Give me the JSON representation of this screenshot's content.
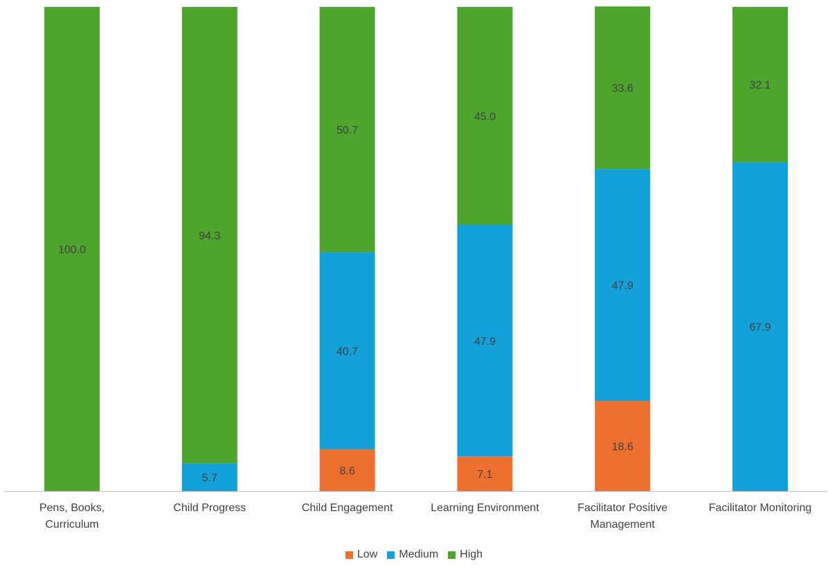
{
  "chart_data": {
    "type": "bar",
    "stacked": true,
    "title": "",
    "xlabel": "",
    "ylabel": "",
    "ylim": [
      0,
      100
    ],
    "grid": false,
    "legend_position": "bottom",
    "categories": [
      [
        "Pens, Books,",
        "Curriculum"
      ],
      [
        "Child Progress"
      ],
      [
        "Child Engagement"
      ],
      [
        "Learning Environment"
      ],
      [
        "Facilitator Positive",
        "Management"
      ],
      [
        "Facilitator Monitoring"
      ]
    ],
    "series": [
      {
        "name": "Low",
        "color": "#ED7030",
        "values": [
          0,
          0,
          8.6,
          7.1,
          18.6,
          0
        ]
      },
      {
        "name": "Medium",
        "color": "#14A0D8",
        "values": [
          0,
          5.7,
          40.7,
          47.9,
          47.9,
          67.9
        ]
      },
      {
        "name": "High",
        "color": "#4EA52D",
        "values": [
          100.0,
          94.3,
          50.7,
          45.0,
          33.6,
          32.1
        ]
      }
    ]
  }
}
